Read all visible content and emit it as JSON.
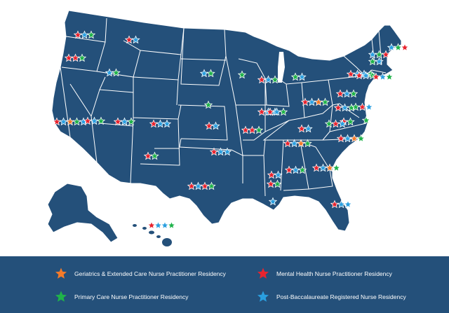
{
  "legend": {
    "geriatrics": {
      "label": "Geriatrics & Extended Care Nurse Practitioner Residency",
      "color": "#f47b2a",
      "icon": "star-icon"
    },
    "mental_health": {
      "label": "Mental Health Nurse Practitioner Residency",
      "color": "#e8242f",
      "icon": "star-icon"
    },
    "primary_care": {
      "label": "Primary Care Nurse Practitioner Residency",
      "color": "#1fb34a",
      "icon": "star-icon"
    },
    "post_bacc": {
      "label": "Post-Baccalaureate Registered Nurse Residency",
      "color": "#2a9fe0",
      "icon": "star-icon"
    }
  },
  "colors": {
    "land": "#24507a",
    "border": "#ffffff",
    "legend_band": "#24507a"
  },
  "state_markers": [
    {
      "state": "Washington",
      "programs": [
        "mental_health",
        "post_bacc",
        "primary_care"
      ]
    },
    {
      "state": "Oregon",
      "programs": [
        "mental_health",
        "mental_health",
        "primary_care"
      ]
    },
    {
      "state": "Idaho",
      "programs": [
        "post_bacc",
        "primary_care"
      ]
    },
    {
      "state": "Montana",
      "programs": [
        "mental_health",
        "post_bacc"
      ]
    },
    {
      "state": "California",
      "programs": [
        "mental_health",
        "post_bacc",
        "geriatrics",
        "primary_care",
        "post_bacc"
      ]
    },
    {
      "state": "Nevada",
      "programs": [
        "mental_health",
        "post_bacc",
        "primary_care"
      ]
    },
    {
      "state": "Utah",
      "programs": [
        "mental_health",
        "post_bacc",
        "primary_care"
      ]
    },
    {
      "state": "Colorado",
      "programs": [
        "mental_health",
        "post_bacc",
        "post_bacc"
      ]
    },
    {
      "state": "New Mexico",
      "programs": [
        "mental_health",
        "primary_care"
      ]
    },
    {
      "state": "South Dakota",
      "programs": [
        "post_bacc",
        "primary_care"
      ]
    },
    {
      "state": "Nebraska",
      "programs": [
        "primary_care"
      ]
    },
    {
      "state": "Kansas",
      "programs": [
        "mental_health",
        "post_bacc"
      ]
    },
    {
      "state": "Oklahoma",
      "programs": [
        "mental_health",
        "post_bacc",
        "post_bacc"
      ]
    },
    {
      "state": "Texas",
      "programs": [
        "mental_health",
        "post_bacc",
        "mental_health",
        "primary_care"
      ]
    },
    {
      "state": "Minnesota",
      "programs": [
        "primary_care"
      ]
    },
    {
      "state": "Wisconsin",
      "programs": [
        "mental_health",
        "post_bacc",
        "primary_care"
      ]
    },
    {
      "state": "Iowa",
      "programs": [
        "mental_health",
        "post_bacc",
        "post_bacc"
      ]
    },
    {
      "state": "Missouri",
      "programs": [
        "mental_health",
        "mental_health",
        "primary_care"
      ]
    },
    {
      "state": "Illinois",
      "programs": [
        "mental_health",
        "post_bacc",
        "primary_care"
      ]
    },
    {
      "state": "Michigan",
      "programs": [
        "primary_care",
        "post_bacc"
      ]
    },
    {
      "state": "Indiana",
      "programs": [
        "mental_health",
        "post_bacc",
        "geriatrics",
        "primary_care"
      ]
    },
    {
      "state": "Ohio",
      "programs": [
        "mental_health",
        "post_bacc",
        "primary_care"
      ]
    },
    {
      "state": "Kentucky",
      "programs": [
        "mental_health",
        "post_bacc"
      ]
    },
    {
      "state": "Tennessee",
      "programs": [
        "mental_health",
        "post_bacc",
        "geriatrics",
        "primary_care"
      ]
    },
    {
      "state": "Arkansas",
      "programs": [
        "mental_health",
        "post_bacc"
      ]
    },
    {
      "state": "Mississippi",
      "programs": [
        "mental_health",
        "primary_care"
      ]
    },
    {
      "state": "Alabama",
      "programs": [
        "mental_health",
        "post_bacc",
        "primary_care"
      ]
    },
    {
      "state": "Georgia",
      "programs": [
        "mental_health",
        "post_bacc",
        "geriatrics",
        "primary_care"
      ]
    },
    {
      "state": "Louisiana",
      "programs": [
        "post_bacc"
      ]
    },
    {
      "state": "Florida",
      "programs": [
        "mental_health",
        "post_bacc",
        "post_bacc"
      ]
    },
    {
      "state": "South Carolina",
      "programs": [
        "mental_health",
        "post_bacc",
        "geriatrics",
        "primary_care"
      ]
    },
    {
      "state": "North Carolina",
      "programs": [
        "mental_health",
        "primary_care"
      ]
    },
    {
      "state": "Virginia",
      "programs": [
        "primary_care",
        "mental_health",
        "post_bacc"
      ]
    },
    {
      "state": "West Virginia",
      "programs": [
        "mental_health",
        "post_bacc",
        "primary_care"
      ]
    },
    {
      "state": "Pennsylvania",
      "programs": [
        "mental_health",
        "post_bacc",
        "post_bacc",
        "primary_care"
      ]
    },
    {
      "state": "New York",
      "programs": [
        "mental_health",
        "post_bacc",
        "primary_care"
      ]
    },
    {
      "state": "New Jersey",
      "programs": [
        "mental_health",
        "post_bacc",
        "primary_care"
      ]
    },
    {
      "state": "Maryland",
      "programs": [
        "primary_care",
        "mental_health",
        "post_bacc"
      ]
    },
    {
      "state": "Delaware",
      "programs": [
        "primary_care"
      ]
    },
    {
      "state": "Massachusetts",
      "programs": [
        "post_bacc",
        "primary_care",
        "mental_health"
      ]
    },
    {
      "state": "Vermont",
      "programs": [
        "primary_care",
        "post_bacc"
      ]
    },
    {
      "state": "Maine",
      "programs": [
        "post_bacc",
        "primary_care",
        "mental_health"
      ]
    },
    {
      "state": "Hawaii",
      "programs": [
        "mental_health",
        "post_bacc",
        "post_bacc",
        "primary_care"
      ]
    }
  ]
}
